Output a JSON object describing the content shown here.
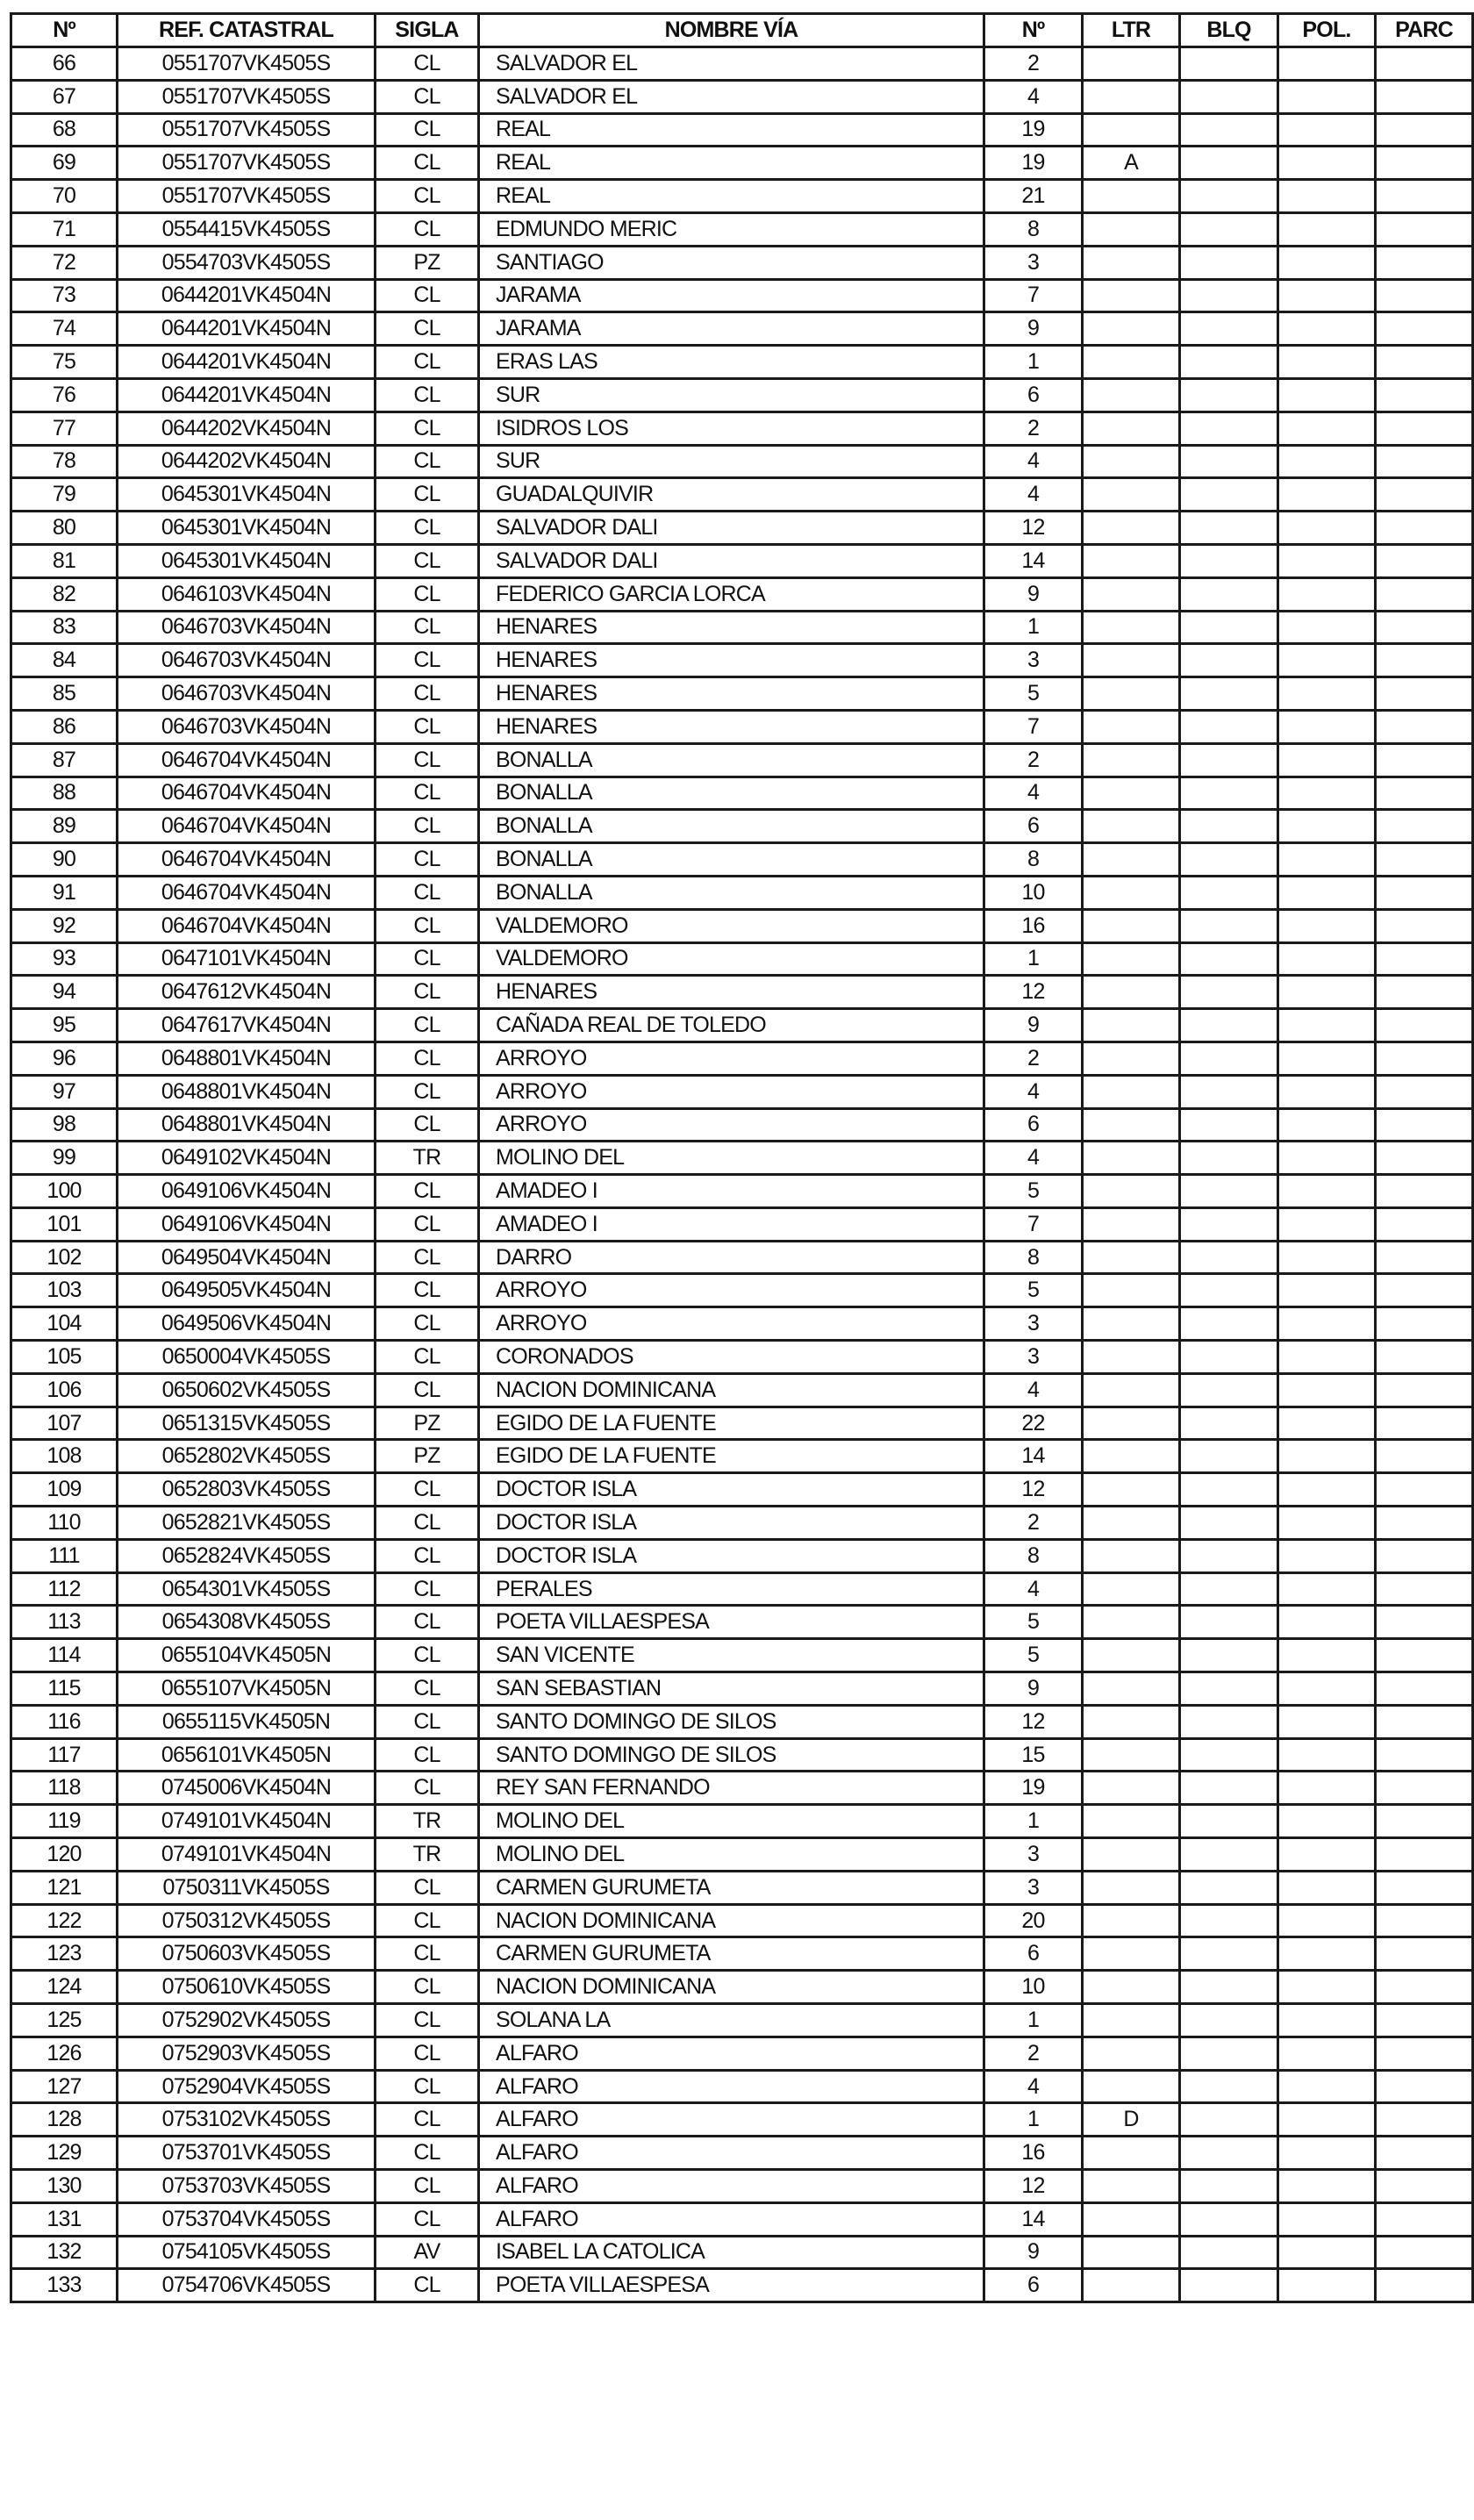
{
  "table": {
    "headers": [
      "Nº",
      "REF. CATASTRAL",
      "SIGLA",
      "NOMBRE VÍA",
      "Nº",
      "LTR",
      "BLQ",
      "POL.",
      "PARC"
    ],
    "rows": [
      [
        "66",
        "0551707VK4505S",
        "CL",
        "SALVADOR EL",
        "2",
        "",
        "",
        "",
        ""
      ],
      [
        "67",
        "0551707VK4505S",
        "CL",
        "SALVADOR EL",
        "4",
        "",
        "",
        "",
        ""
      ],
      [
        "68",
        "0551707VK4505S",
        "CL",
        "REAL",
        "19",
        "",
        "",
        "",
        ""
      ],
      [
        "69",
        "0551707VK4505S",
        "CL",
        "REAL",
        "19",
        "A",
        "",
        "",
        ""
      ],
      [
        "70",
        "0551707VK4505S",
        "CL",
        "REAL",
        "21",
        "",
        "",
        "",
        ""
      ],
      [
        "71",
        "0554415VK4505S",
        "CL",
        "EDMUNDO MERIC",
        "8",
        "",
        "",
        "",
        ""
      ],
      [
        "72",
        "0554703VK4505S",
        "PZ",
        "SANTIAGO",
        "3",
        "",
        "",
        "",
        ""
      ],
      [
        "73",
        "0644201VK4504N",
        "CL",
        "JARAMA",
        "7",
        "",
        "",
        "",
        ""
      ],
      [
        "74",
        "0644201VK4504N",
        "CL",
        "JARAMA",
        "9",
        "",
        "",
        "",
        ""
      ],
      [
        "75",
        "0644201VK4504N",
        "CL",
        "ERAS LAS",
        "1",
        "",
        "",
        "",
        ""
      ],
      [
        "76",
        "0644201VK4504N",
        "CL",
        "SUR",
        "6",
        "",
        "",
        "",
        ""
      ],
      [
        "77",
        "0644202VK4504N",
        "CL",
        "ISIDROS LOS",
        "2",
        "",
        "",
        "",
        ""
      ],
      [
        "78",
        "0644202VK4504N",
        "CL",
        "SUR",
        "4",
        "",
        "",
        "",
        ""
      ],
      [
        "79",
        "0645301VK4504N",
        "CL",
        "GUADALQUIVIR",
        "4",
        "",
        "",
        "",
        ""
      ],
      [
        "80",
        "0645301VK4504N",
        "CL",
        "SALVADOR DALI",
        "12",
        "",
        "",
        "",
        ""
      ],
      [
        "81",
        "0645301VK4504N",
        "CL",
        "SALVADOR DALI",
        "14",
        "",
        "",
        "",
        ""
      ],
      [
        "82",
        "0646103VK4504N",
        "CL",
        "FEDERICO GARCIA LORCA",
        "9",
        "",
        "",
        "",
        ""
      ],
      [
        "83",
        "0646703VK4504N",
        "CL",
        "HENARES",
        "1",
        "",
        "",
        "",
        ""
      ],
      [
        "84",
        "0646703VK4504N",
        "CL",
        "HENARES",
        "3",
        "",
        "",
        "",
        ""
      ],
      [
        "85",
        "0646703VK4504N",
        "CL",
        "HENARES",
        "5",
        "",
        "",
        "",
        ""
      ],
      [
        "86",
        "0646703VK4504N",
        "CL",
        "HENARES",
        "7",
        "",
        "",
        "",
        ""
      ],
      [
        "87",
        "0646704VK4504N",
        "CL",
        "BONALLA",
        "2",
        "",
        "",
        "",
        ""
      ],
      [
        "88",
        "0646704VK4504N",
        "CL",
        "BONALLA",
        "4",
        "",
        "",
        "",
        ""
      ],
      [
        "89",
        "0646704VK4504N",
        "CL",
        "BONALLA",
        "6",
        "",
        "",
        "",
        ""
      ],
      [
        "90",
        "0646704VK4504N",
        "CL",
        "BONALLA",
        "8",
        "",
        "",
        "",
        ""
      ],
      [
        "91",
        "0646704VK4504N",
        "CL",
        "BONALLA",
        "10",
        "",
        "",
        "",
        ""
      ],
      [
        "92",
        "0646704VK4504N",
        "CL",
        "VALDEMORO",
        "16",
        "",
        "",
        "",
        ""
      ],
      [
        "93",
        "0647101VK4504N",
        "CL",
        "VALDEMORO",
        "1",
        "",
        "",
        "",
        ""
      ],
      [
        "94",
        "0647612VK4504N",
        "CL",
        "HENARES",
        "12",
        "",
        "",
        "",
        ""
      ],
      [
        "95",
        "0647617VK4504N",
        "CL",
        "CAÑADA REAL DE TOLEDO",
        "9",
        "",
        "",
        "",
        ""
      ],
      [
        "96",
        "0648801VK4504N",
        "CL",
        "ARROYO",
        "2",
        "",
        "",
        "",
        ""
      ],
      [
        "97",
        "0648801VK4504N",
        "CL",
        "ARROYO",
        "4",
        "",
        "",
        "",
        ""
      ],
      [
        "98",
        "0648801VK4504N",
        "CL",
        "ARROYO",
        "6",
        "",
        "",
        "",
        ""
      ],
      [
        "99",
        "0649102VK4504N",
        "TR",
        "MOLINO DEL",
        "4",
        "",
        "",
        "",
        ""
      ],
      [
        "100",
        "0649106VK4504N",
        "CL",
        "AMADEO I",
        "5",
        "",
        "",
        "",
        ""
      ],
      [
        "101",
        "0649106VK4504N",
        "CL",
        "AMADEO I",
        "7",
        "",
        "",
        "",
        ""
      ],
      [
        "102",
        "0649504VK4504N",
        "CL",
        "DARRO",
        "8",
        "",
        "",
        "",
        ""
      ],
      [
        "103",
        "0649505VK4504N",
        "CL",
        "ARROYO",
        "5",
        "",
        "",
        "",
        ""
      ],
      [
        "104",
        "0649506VK4504N",
        "CL",
        "ARROYO",
        "3",
        "",
        "",
        "",
        ""
      ],
      [
        "105",
        "0650004VK4505S",
        "CL",
        "CORONADOS",
        "3",
        "",
        "",
        "",
        ""
      ],
      [
        "106",
        "0650602VK4505S",
        "CL",
        "NACION DOMINICANA",
        "4",
        "",
        "",
        "",
        ""
      ],
      [
        "107",
        "0651315VK4505S",
        "PZ",
        "EGIDO DE LA FUENTE",
        "22",
        "",
        "",
        "",
        ""
      ],
      [
        "108",
        "0652802VK4505S",
        "PZ",
        "EGIDO DE LA FUENTE",
        "14",
        "",
        "",
        "",
        ""
      ],
      [
        "109",
        "0652803VK4505S",
        "CL",
        "DOCTOR ISLA",
        "12",
        "",
        "",
        "",
        ""
      ],
      [
        "110",
        "0652821VK4505S",
        "CL",
        "DOCTOR ISLA",
        "2",
        "",
        "",
        "",
        ""
      ],
      [
        "111",
        "0652824VK4505S",
        "CL",
        "DOCTOR ISLA",
        "8",
        "",
        "",
        "",
        ""
      ],
      [
        "112",
        "0654301VK4505S",
        "CL",
        "PERALES",
        "4",
        "",
        "",
        "",
        ""
      ],
      [
        "113",
        "0654308VK4505S",
        "CL",
        "POETA VILLAESPESA",
        "5",
        "",
        "",
        "",
        ""
      ],
      [
        "114",
        "0655104VK4505N",
        "CL",
        "SAN VICENTE",
        "5",
        "",
        "",
        "",
        ""
      ],
      [
        "115",
        "0655107VK4505N",
        "CL",
        "SAN SEBASTIAN",
        "9",
        "",
        "",
        "",
        ""
      ],
      [
        "116",
        "0655115VK4505N",
        "CL",
        "SANTO DOMINGO DE SILOS",
        "12",
        "",
        "",
        "",
        ""
      ],
      [
        "117",
        "0656101VK4505N",
        "CL",
        "SANTO DOMINGO DE SILOS",
        "15",
        "",
        "",
        "",
        ""
      ],
      [
        "118",
        "0745006VK4504N",
        "CL",
        "REY SAN FERNANDO",
        "19",
        "",
        "",
        "",
        ""
      ],
      [
        "119",
        "0749101VK4504N",
        "TR",
        "MOLINO DEL",
        "1",
        "",
        "",
        "",
        ""
      ],
      [
        "120",
        "0749101VK4504N",
        "TR",
        "MOLINO DEL",
        "3",
        "",
        "",
        "",
        ""
      ],
      [
        "121",
        "0750311VK4505S",
        "CL",
        "CARMEN GURUMETA",
        "3",
        "",
        "",
        "",
        ""
      ],
      [
        "122",
        "0750312VK4505S",
        "CL",
        "NACION DOMINICANA",
        "20",
        "",
        "",
        "",
        ""
      ],
      [
        "123",
        "0750603VK4505S",
        "CL",
        "CARMEN GURUMETA",
        "6",
        "",
        "",
        "",
        ""
      ],
      [
        "124",
        "0750610VK4505S",
        "CL",
        "NACION DOMINICANA",
        "10",
        "",
        "",
        "",
        ""
      ],
      [
        "125",
        "0752902VK4505S",
        "CL",
        "SOLANA LA",
        "1",
        "",
        "",
        "",
        ""
      ],
      [
        "126",
        "0752903VK4505S",
        "CL",
        "ALFARO",
        "2",
        "",
        "",
        "",
        ""
      ],
      [
        "127",
        "0752904VK4505S",
        "CL",
        "ALFARO",
        "4",
        "",
        "",
        "",
        ""
      ],
      [
        "128",
        "0753102VK4505S",
        "CL",
        "ALFARO",
        "1",
        "D",
        "",
        "",
        ""
      ],
      [
        "129",
        "0753701VK4505S",
        "CL",
        "ALFARO",
        "16",
        "",
        "",
        "",
        ""
      ],
      [
        "130",
        "0753703VK4505S",
        "CL",
        "ALFARO",
        "12",
        "",
        "",
        "",
        ""
      ],
      [
        "131",
        "0753704VK4505S",
        "CL",
        "ALFARO",
        "14",
        "",
        "",
        "",
        ""
      ],
      [
        "132",
        "0754105VK4505S",
        "AV",
        "ISABEL LA CATOLICA",
        "9",
        "",
        "",
        "",
        ""
      ],
      [
        "133",
        "0754706VK4505S",
        "CL",
        "POETA VILLAESPESA",
        "6",
        "",
        "",
        "",
        ""
      ]
    ]
  }
}
